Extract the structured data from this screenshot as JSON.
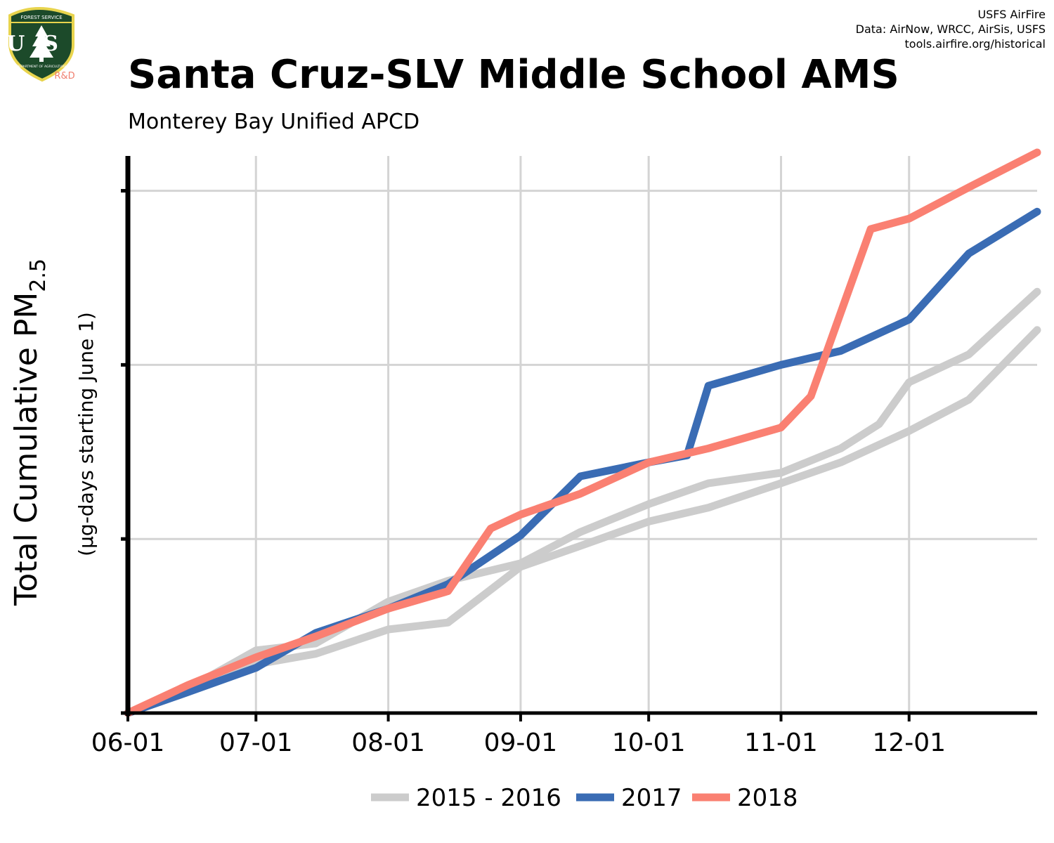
{
  "header": {
    "title": "Santa Cruz-SLV Middle School AMS",
    "subtitle": "Monterey Bay Unified APCD",
    "credits": [
      "USFS AirFire",
      "Data: AirNow, WRCC, AirSis, USFS",
      "tools.airfire.org/historical"
    ]
  },
  "logo": {
    "top_text": "FOREST SERVICE",
    "letters": "US",
    "bottom_text": "DEPARTMENT OF AGRICULTURE",
    "rd": "R&D",
    "colors": {
      "shield": "#1c4a2a",
      "rim": "#e8d44d",
      "rd": "#f08070"
    }
  },
  "chart_data": {
    "type": "line",
    "title": "Santa Cruz-SLV Middle School AMS",
    "subtitle": "Monterey Bay Unified APCD",
    "xlabel": "",
    "ylabel": "Total Cumulative PM",
    "ylabel_sub": "2.5",
    "ylabel_units": "(µg-days starting June 1)",
    "x_axis": {
      "type": "date",
      "start": "06-01",
      "end": "12-31",
      "ticks": [
        "06-01",
        "07-01",
        "08-01",
        "09-01",
        "10-01",
        "11-01",
        "12-01"
      ]
    },
    "y_axis": {
      "range": [
        0,
        1.6
      ],
      "gridlines": [
        0,
        0.5,
        1.0,
        1.5
      ],
      "tick_labels": false
    },
    "grid": true,
    "legend": {
      "placement": "bottom",
      "entries": [
        {
          "label": "2015 - 2016",
          "color": "#cccccc"
        },
        {
          "label": "2017",
          "color": "#3a6cb4"
        },
        {
          "label": "2018",
          "color": "#fa8072"
        }
      ]
    },
    "series": [
      {
        "legend": "2015 - 2016",
        "color": "#cccccc",
        "points": [
          [
            "06-01",
            0
          ],
          [
            "06-15",
            0.07
          ],
          [
            "07-01",
            0.18
          ],
          [
            "07-15",
            0.2
          ],
          [
            "08-01",
            0.32
          ],
          [
            "08-15",
            0.38
          ],
          [
            "09-01",
            0.43
          ],
          [
            "09-15",
            0.52
          ],
          [
            "10-01",
            0.6
          ],
          [
            "10-15",
            0.66
          ],
          [
            "11-01",
            0.69
          ],
          [
            "11-15",
            0.76
          ],
          [
            "11-24",
            0.83
          ],
          [
            "12-01",
            0.95
          ],
          [
            "12-15",
            1.03
          ],
          [
            "12-31",
            1.21
          ]
        ]
      },
      {
        "legend": "2015 - 2016",
        "color": "#cccccc",
        "points": [
          [
            "06-01",
            0
          ],
          [
            "06-15",
            0.06
          ],
          [
            "07-01",
            0.14
          ],
          [
            "07-15",
            0.17
          ],
          [
            "08-01",
            0.24
          ],
          [
            "08-15",
            0.26
          ],
          [
            "09-01",
            0.42
          ],
          [
            "09-15",
            0.48
          ],
          [
            "10-01",
            0.55
          ],
          [
            "10-15",
            0.59
          ],
          [
            "11-01",
            0.66
          ],
          [
            "11-15",
            0.72
          ],
          [
            "12-01",
            0.81
          ],
          [
            "12-15",
            0.9
          ],
          [
            "12-31",
            1.1
          ]
        ]
      },
      {
        "legend": "2017",
        "color": "#3a6cb4",
        "points": [
          [
            "06-01",
            0
          ],
          [
            "06-15",
            0.06
          ],
          [
            "07-01",
            0.13
          ],
          [
            "07-15",
            0.23
          ],
          [
            "08-01",
            0.3
          ],
          [
            "08-15",
            0.37
          ],
          [
            "09-01",
            0.51
          ],
          [
            "09-15",
            0.68
          ],
          [
            "10-01",
            0.72
          ],
          [
            "10-10",
            0.74
          ],
          [
            "10-15",
            0.94
          ],
          [
            "11-01",
            1.0
          ],
          [
            "11-15",
            1.04
          ],
          [
            "12-01",
            1.13
          ],
          [
            "12-15",
            1.32
          ],
          [
            "12-31",
            1.44
          ]
        ]
      },
      {
        "legend": "2018",
        "color": "#fa8072",
        "points": [
          [
            "06-01",
            0
          ],
          [
            "06-15",
            0.08
          ],
          [
            "07-01",
            0.16
          ],
          [
            "07-15",
            0.22
          ],
          [
            "08-01",
            0.3
          ],
          [
            "08-15",
            0.35
          ],
          [
            "08-25",
            0.53
          ],
          [
            "09-01",
            0.57
          ],
          [
            "09-15",
            0.63
          ],
          [
            "10-01",
            0.72
          ],
          [
            "10-15",
            0.76
          ],
          [
            "11-01",
            0.82
          ],
          [
            "11-08",
            0.91
          ],
          [
            "11-15",
            1.15
          ],
          [
            "11-22",
            1.39
          ],
          [
            "12-01",
            1.42
          ],
          [
            "12-15",
            1.51
          ],
          [
            "12-31",
            1.61
          ]
        ]
      }
    ]
  }
}
